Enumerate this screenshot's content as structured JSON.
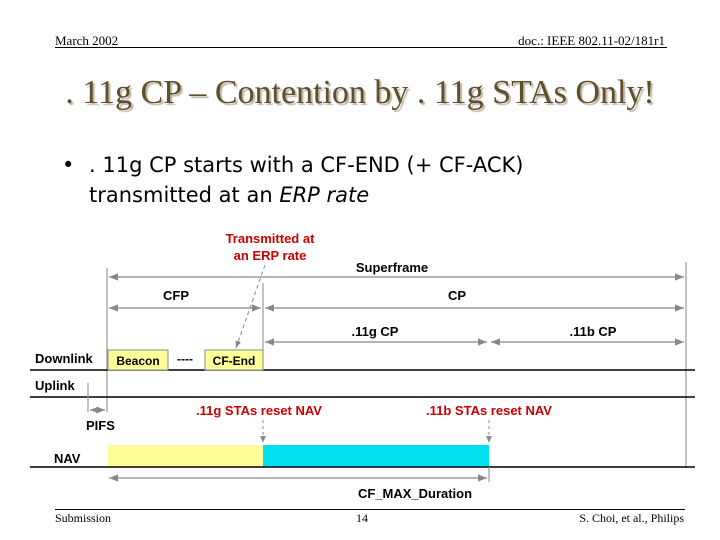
{
  "header": {
    "date": "March 2002",
    "doc_id": "doc.: IEEE 802.11-02/181r1"
  },
  "slide": {
    "title": ". 11g CP – Contention by . 11g STAs Only!",
    "bullet": {
      "text": ". 11g CP starts with a CF-END (+ CF-ACK)",
      "line2_prefix": "transmitted at an ",
      "line2_italic": "ERP rate"
    }
  },
  "diagram": {
    "annotation_line1": "Transmitted at",
    "annotation_line2": "an ERP rate",
    "superframe": "Superframe",
    "cfp": "CFP",
    "cp": "CP",
    "cp_11g": ".11g CP",
    "cp_11b": ".11b CP",
    "downlink": "Downlink",
    "uplink": "Uplink",
    "nav": "NAV",
    "pifs": "PIFS",
    "beacon": "Beacon",
    "dashes": "----",
    "cf_end": "CF-End",
    "reset_11g": ".11g STAs reset NAV",
    "reset_11b": ".11b STAs reset NAV",
    "cf_max": "CF_MAX_Duration",
    "colors": {
      "accent_red": "#cc0000",
      "frame_fill": "#ffff99",
      "nav_yellow": "#ffff99",
      "nav_cyan": "#00e0f0"
    }
  },
  "footer": {
    "left": "Submission",
    "page": "14",
    "right": "S. Choi, et al., Philips"
  }
}
